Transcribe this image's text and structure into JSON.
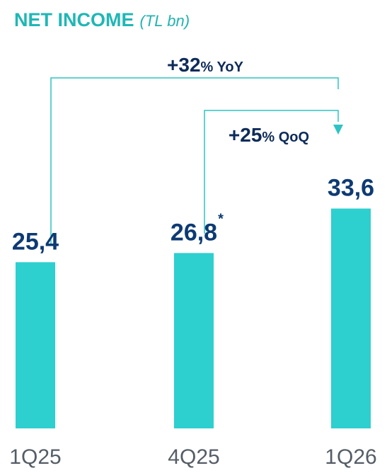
{
  "title": "NET INCOME",
  "subtitle": "(TL bn)",
  "colors": {
    "bar": "#2ecfcf",
    "value": "#0d3a73",
    "bracket": "#2fc3c3",
    "title": "#1fb7b5"
  },
  "chart_data": {
    "type": "bar",
    "title": "NET INCOME",
    "unit": "(TL bn)",
    "categories": [
      "1Q25",
      "4Q25",
      "1Q26"
    ],
    "values": [
      25.4,
      26.8,
      33.6
    ],
    "value_labels": [
      "25,4",
      "26,8",
      "33,6"
    ],
    "value_footnote": {
      "category": "4Q25",
      "mark": "*"
    },
    "grid": false,
    "legend": "none",
    "annotations": [
      {
        "from": "1Q25",
        "to": "1Q26",
        "value": "+32",
        "suffix": "% YoY"
      },
      {
        "from": "4Q25",
        "to": "1Q26",
        "value": "+25",
        "suffix": "% QoQ"
      }
    ]
  }
}
